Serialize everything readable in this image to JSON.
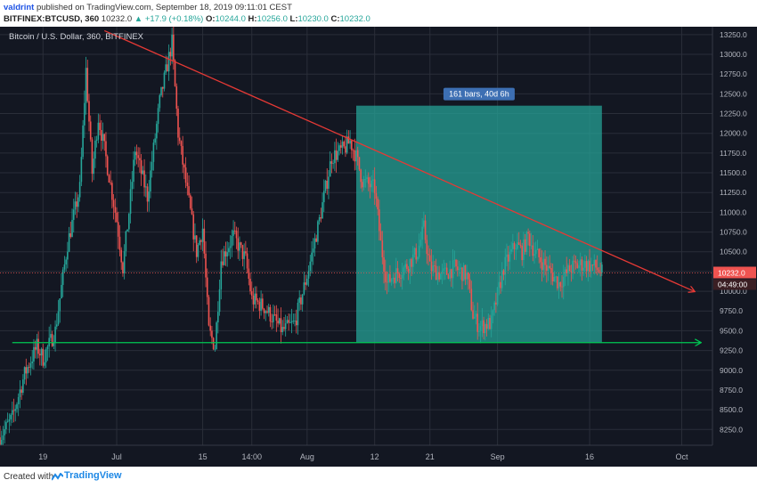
{
  "header": {
    "author": "valdrint",
    "published": " published on TradingView.com, September 18, 2019 09:11:01 CEST",
    "symbol": "BITFINEX:BTCUSD, 360",
    "last": "10232.0",
    "change": "▲ +17.9 (+0.18%)",
    "o_label": "O:",
    "o": "10244.0",
    "h_label": "H:",
    "h": "10256.0",
    "l_label": "L:",
    "l": "10230.0",
    "c_label": "C:",
    "c": "10232.0"
  },
  "footer": {
    "created": "Created with",
    "brand": "TradingView"
  },
  "colors": {
    "background": "#131722",
    "up": "#26a69a",
    "down": "#ef5350",
    "grid": "#2a2e39",
    "trendline": "#e53935",
    "support": "#00c853",
    "range_box": "#26a69a"
  },
  "chart_data": {
    "type": "candlestick",
    "title": "Bitcoin / U.S. Dollar, 360, BITFINEX",
    "ylim": [
      8050,
      13350
    ],
    "y_ticks": [
      8250,
      8500,
      8750,
      9000,
      9250,
      9500,
      9750,
      10000,
      10250,
      10500,
      10750,
      11000,
      11250,
      11500,
      11750,
      12000,
      12250,
      12500,
      12750,
      13000,
      13250
    ],
    "y_tick_labels": [
      "8250.0",
      "8500.0",
      "8750.0",
      "9000.0",
      "9250.0",
      "9500.0",
      "9750.0",
      "10000.0",
      "10250.0",
      "10500.0",
      "10750.0",
      "11000.0",
      "11250.0",
      "11500.0",
      "11750.0",
      "12000.0",
      "12250.0",
      "12500.0",
      "12750.0",
      "13000.0",
      "13250.0"
    ],
    "x_range": [
      "2019-06-12",
      "2019-10-06"
    ],
    "x_ticks": [
      {
        "date": "2019-06-19",
        "label": "19"
      },
      {
        "date": "2019-07-01",
        "label": "Jul"
      },
      {
        "date": "2019-07-15",
        "label": "15"
      },
      {
        "date": "2019-07-23",
        "label": "14:00"
      },
      {
        "date": "2019-08-01",
        "label": "Aug"
      },
      {
        "date": "2019-08-12",
        "label": "12"
      },
      {
        "date": "2019-08-21",
        "label": "21"
      },
      {
        "date": "2019-09-01",
        "label": "Sep"
      },
      {
        "date": "2019-09-16",
        "label": "16"
      },
      {
        "date": "2019-10-01",
        "label": "Oct"
      }
    ],
    "last_price": 10232.0,
    "last_price_label": "10232.0",
    "countdown_label": "04:49:00",
    "price_path": [
      [
        "2019-06-12",
        8150
      ],
      [
        "2019-06-14",
        8400
      ],
      [
        "2019-06-16",
        8950
      ],
      [
        "2019-06-18",
        9300
      ],
      [
        "2019-06-19",
        9150
      ],
      [
        "2019-06-21",
        9500
      ],
      [
        "2019-06-23",
        10600
      ],
      [
        "2019-06-25",
        11300
      ],
      [
        "2019-06-26",
        12800
      ],
      [
        "2019-06-27",
        11500
      ],
      [
        "2019-06-28",
        12200
      ],
      [
        "2019-06-29",
        11800
      ],
      [
        "2019-07-01",
        10900
      ],
      [
        "2019-07-02",
        10300
      ],
      [
        "2019-07-03",
        11000
      ],
      [
        "2019-07-04",
        11800
      ],
      [
        "2019-07-06",
        11200
      ],
      [
        "2019-07-08",
        12400
      ],
      [
        "2019-07-10",
        13150
      ],
      [
        "2019-07-11",
        12000
      ],
      [
        "2019-07-12",
        11500
      ],
      [
        "2019-07-14",
        10500
      ],
      [
        "2019-07-15",
        10800
      ],
      [
        "2019-07-16",
        9500
      ],
      [
        "2019-07-17",
        9300
      ],
      [
        "2019-07-18",
        10400
      ],
      [
        "2019-07-20",
        10700
      ],
      [
        "2019-07-22",
        10400
      ],
      [
        "2019-07-23",
        9900
      ],
      [
        "2019-07-25",
        9800
      ],
      [
        "2019-07-27",
        9600
      ],
      [
        "2019-07-28",
        9500
      ],
      [
        "2019-07-30",
        9600
      ],
      [
        "2019-08-01",
        10200
      ],
      [
        "2019-08-03",
        10900
      ],
      [
        "2019-08-05",
        11700
      ],
      [
        "2019-08-07",
        11800
      ],
      [
        "2019-08-08",
        11900
      ],
      [
        "2019-08-09",
        11700
      ],
      [
        "2019-08-10",
        11400
      ],
      [
        "2019-08-12",
        11300
      ],
      [
        "2019-08-13",
        10600
      ],
      [
        "2019-08-14",
        10100
      ],
      [
        "2019-08-15",
        10200
      ],
      [
        "2019-08-17",
        10300
      ],
      [
        "2019-08-19",
        10500
      ],
      [
        "2019-08-20",
        10800
      ],
      [
        "2019-08-21",
        10300
      ],
      [
        "2019-08-23",
        10200
      ],
      [
        "2019-08-25",
        10300
      ],
      [
        "2019-08-27",
        10200
      ],
      [
        "2019-08-28",
        9700
      ],
      [
        "2019-08-29",
        9550
      ],
      [
        "2019-08-31",
        9600
      ],
      [
        "2019-09-02",
        10300
      ],
      [
        "2019-09-04",
        10600
      ],
      [
        "2019-09-05",
        10500
      ],
      [
        "2019-09-06",
        10700
      ],
      [
        "2019-09-07",
        10500
      ],
      [
        "2019-09-09",
        10300
      ],
      [
        "2019-09-11",
        10100
      ],
      [
        "2019-09-13",
        10300
      ],
      [
        "2019-09-15",
        10350
      ],
      [
        "2019-09-17",
        10300
      ],
      [
        "2019-09-18",
        10232
      ]
    ],
    "trendline": {
      "from": [
        "2019-06-29",
        13300
      ],
      "to": [
        "2019-10-03",
        10000
      ],
      "label": ""
    },
    "support_line": {
      "from": [
        "2019-06-14",
        9350
      ],
      "to": [
        "2019-10-04",
        9350
      ]
    },
    "range_box": {
      "x0": "2019-08-09",
      "x1": "2019-09-18",
      "y0": 9350,
      "y1": 12350,
      "label": "161 bars, 40d 6h"
    }
  }
}
